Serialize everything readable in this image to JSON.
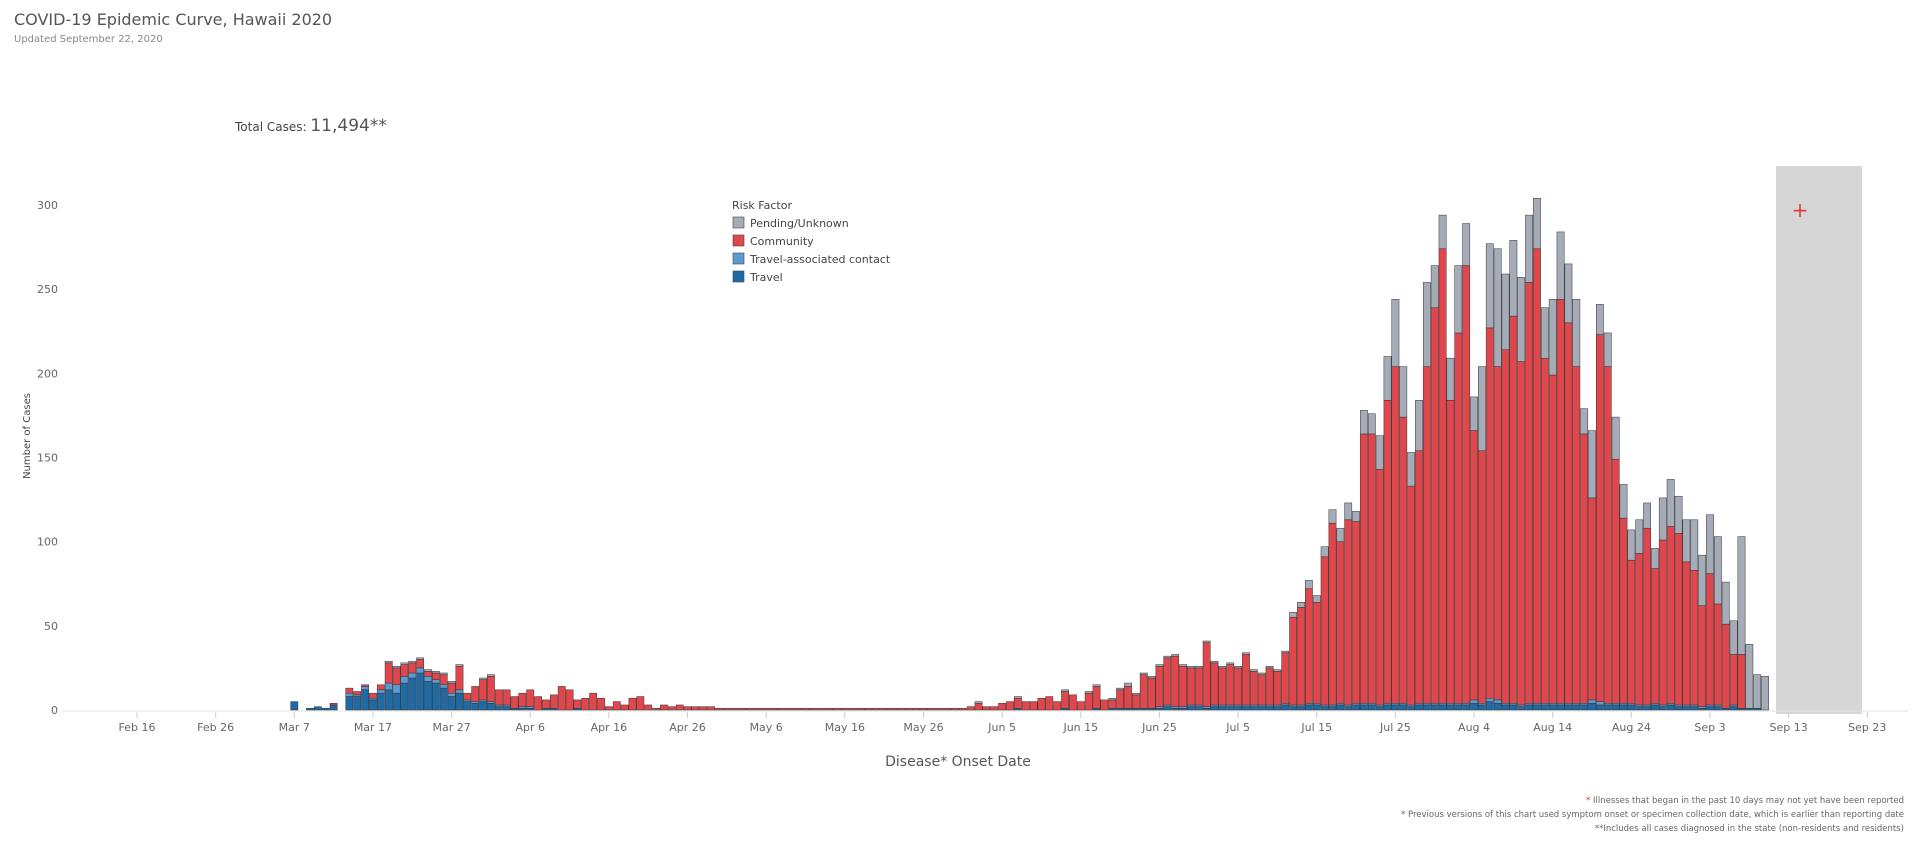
{
  "header": {
    "title": "COVID-19 Epidemic Curve, Hawaii 2020",
    "updated": "Updated September 22, 2020"
  },
  "total_cases": {
    "label": "Total Cases:",
    "value": "11,494**"
  },
  "footnotes": {
    "note1_star": "*",
    "note1_text": " Illnesses that began in the past 10 days may not yet have been reported",
    "note2": "* Previous versions of this chart used symptom onset or specimen collection date, which is earlier than reporting date",
    "note3": "**Includes all cases diagnosed in the state (non-residents and residents)"
  },
  "chart_data": {
    "type": "bar",
    "stacked": true,
    "xlabel": "Disease* Onset Date",
    "ylabel": "Number of Cases",
    "ylim": [
      0,
      320
    ],
    "y_ticks": [
      0,
      50,
      100,
      150,
      200,
      250,
      300
    ],
    "x_tick_labels": [
      "Feb 16",
      "Feb 26",
      "Mar 7",
      "Mar 17",
      "Mar 27",
      "Apr 6",
      "Apr 16",
      "Apr 26",
      "May 6",
      "May 16",
      "May 26",
      "Jun 5",
      "Jun 15",
      "Jun 25",
      "Jul 5",
      "Jul 15",
      "Jul 25",
      "Aug 4",
      "Aug 14",
      "Aug 24",
      "Sep 3",
      "Sep 13",
      "Sep 23"
    ],
    "legend": {
      "title": "Risk Factor",
      "placement": "top-center",
      "items": [
        "Pending/Unknown",
        "Community",
        "Travel-associated contact",
        "Travel"
      ]
    },
    "colors": {
      "Pending/Unknown": "#a5acb7",
      "Community": "#e0474c",
      "Travel-associated contact": "#5b9bd1",
      "Travel": "#1f6aa5",
      "shade": "#d6d6d6",
      "shade_marker": "#e03c3c"
    },
    "shaded_region": {
      "from": "Sep 12",
      "to": "Sep 22",
      "marker": "+",
      "note": "*"
    },
    "start_date": "Feb 16",
    "series_order": [
      "Travel",
      "Travel-associated contact",
      "Community",
      "Pending/Unknown"
    ],
    "series": [
      {
        "name": "Travel",
        "values": [
          0,
          0,
          0,
          0,
          0,
          0,
          0,
          0,
          0,
          0,
          0,
          0,
          0,
          0,
          0,
          0,
          0,
          0,
          0,
          0,
          5,
          0,
          1,
          2,
          1,
          3,
          0,
          8,
          8,
          12,
          6,
          10,
          12,
          10,
          16,
          19,
          22,
          17,
          16,
          13,
          8,
          10,
          5,
          4,
          5,
          4,
          2,
          2,
          1,
          1,
          1,
          0,
          1,
          1,
          0,
          0,
          1,
          0,
          0,
          0,
          0,
          0,
          0,
          0,
          0,
          0,
          0,
          0,
          0,
          0,
          0,
          0,
          0,
          0,
          0,
          0,
          0,
          0,
          0,
          0,
          0,
          0,
          0,
          0,
          0,
          0,
          0,
          0,
          0,
          0,
          0,
          0,
          0,
          0,
          0,
          0,
          0,
          0,
          0,
          0,
          0,
          0,
          0,
          0,
          0,
          0,
          0,
          0,
          0,
          0,
          0,
          0,
          1,
          0,
          0,
          0,
          0,
          0,
          1,
          0,
          0,
          0,
          1,
          0,
          1,
          1,
          1,
          1,
          1,
          1,
          1,
          2,
          1,
          1,
          2,
          2,
          1,
          2,
          2,
          2,
          2,
          2,
          2,
          2,
          2,
          2,
          3,
          2,
          2,
          3,
          3,
          2,
          2,
          3,
          2,
          3,
          3,
          3,
          2,
          3,
          3,
          3,
          2,
          3,
          3,
          3,
          3,
          3,
          3,
          3,
          4,
          3,
          5,
          4,
          3,
          3,
          2,
          3,
          3,
          3,
          3,
          3,
          3,
          3,
          3,
          4,
          3,
          3,
          3,
          3,
          3,
          2,
          2,
          3,
          2,
          3,
          2,
          2,
          2,
          1,
          2,
          2,
          1,
          2,
          1,
          1,
          1,
          0,
          0
        ]
      },
      {
        "name": "Travel-associated contact",
        "values": [
          0,
          0,
          0,
          0,
          0,
          0,
          0,
          0,
          0,
          0,
          0,
          0,
          0,
          0,
          0,
          0,
          0,
          0,
          0,
          0,
          0,
          0,
          0,
          0,
          0,
          0,
          0,
          2,
          1,
          2,
          1,
          2,
          4,
          5,
          4,
          3,
          3,
          3,
          2,
          2,
          2,
          2,
          1,
          1,
          1,
          1,
          1,
          1,
          0,
          1,
          1,
          0,
          0,
          0,
          0,
          0,
          0,
          0,
          0,
          0,
          0,
          0,
          0,
          0,
          0,
          0,
          0,
          0,
          0,
          0,
          0,
          0,
          0,
          0,
          0,
          0,
          0,
          0,
          0,
          0,
          0,
          0,
          0,
          0,
          0,
          0,
          0,
          0,
          0,
          0,
          0,
          0,
          0,
          0,
          0,
          0,
          0,
          0,
          0,
          0,
          0,
          0,
          0,
          0,
          0,
          0,
          0,
          0,
          0,
          0,
          0,
          0,
          0,
          0,
          0,
          0,
          0,
          0,
          0,
          0,
          0,
          0,
          0,
          0,
          0,
          0,
          0,
          0,
          0,
          0,
          1,
          1,
          1,
          1,
          1,
          1,
          1,
          1,
          1,
          1,
          1,
          1,
          1,
          1,
          1,
          1,
          1,
          1,
          1,
          1,
          1,
          1,
          1,
          1,
          1,
          1,
          1,
          1,
          1,
          1,
          1,
          1,
          1,
          1,
          1,
          1,
          1,
          1,
          1,
          1,
          2,
          1,
          2,
          2,
          1,
          1,
          1,
          1,
          1,
          1,
          1,
          1,
          1,
          1,
          1,
          2,
          2,
          1,
          1,
          1,
          1,
          1,
          1,
          1,
          1,
          1,
          1,
          1,
          1,
          1,
          1,
          1,
          0,
          1,
          0,
          0,
          0,
          0,
          0
        ]
      },
      {
        "name": "Community",
        "values": [
          0,
          0,
          0,
          0,
          0,
          0,
          0,
          0,
          0,
          0,
          0,
          0,
          0,
          0,
          0,
          0,
          0,
          0,
          0,
          0,
          0,
          0,
          0,
          0,
          0,
          1,
          0,
          3,
          2,
          1,
          3,
          3,
          12,
          10,
          7,
          6,
          5,
          3,
          4,
          6,
          6,
          14,
          4,
          9,
          12,
          15,
          9,
          9,
          7,
          8,
          10,
          8,
          5,
          8,
          14,
          12,
          5,
          7,
          10,
          7,
          2,
          5,
          3,
          7,
          8,
          3,
          1,
          3,
          2,
          3,
          2,
          2,
          2,
          2,
          1,
          1,
          1,
          1,
          1,
          1,
          1,
          1,
          1,
          1,
          1,
          1,
          1,
          1,
          1,
          1,
          1,
          1,
          1,
          1,
          1,
          1,
          1,
          1,
          1,
          1,
          1,
          1,
          1,
          1,
          1,
          1,
          2,
          4,
          2,
          2,
          4,
          5,
          6,
          5,
          5,
          7,
          8,
          5,
          10,
          9,
          5,
          10,
          13,
          6,
          5,
          11,
          13,
          8,
          20,
          18,
          24,
          28,
          30,
          24,
          22,
          22,
          38,
          25,
          22,
          24,
          22,
          30,
          20,
          18,
          22,
          20,
          30,
          52,
          58,
          68,
          60,
          88,
          108,
          96,
          110,
          108,
          160,
          160,
          140,
          180,
          200,
          170,
          130,
          150,
          200,
          235,
          270,
          180,
          220,
          260,
          160,
          150,
          220,
          198,
          210,
          230,
          204,
          250,
          270,
          205,
          195,
          240,
          226,
          200,
          160,
          120,
          218,
          200,
          145,
          110,
          85,
          90,
          105,
          80,
          98,
          105,
          102,
          85,
          80,
          60,
          78,
          60,
          50,
          30,
          32,
          0,
          0,
          0
        ]
      },
      {
        "name": "Pending/Unknown",
        "values": [
          0,
          0,
          0,
          0,
          0,
          0,
          0,
          0,
          0,
          0,
          0,
          0,
          0,
          0,
          0,
          0,
          0,
          0,
          0,
          0,
          0,
          0,
          0,
          0,
          0,
          0,
          0,
          0,
          0,
          0,
          0,
          0,
          1,
          1,
          1,
          1,
          1,
          1,
          1,
          1,
          1,
          1,
          0,
          0,
          1,
          1,
          0,
          0,
          0,
          0,
          0,
          0,
          0,
          0,
          0,
          0,
          0,
          0,
          0,
          0,
          0,
          0,
          0,
          0,
          0,
          0,
          0,
          0,
          0,
          0,
          0,
          0,
          0,
          0,
          0,
          0,
          0,
          0,
          0,
          0,
          0,
          0,
          0,
          0,
          0,
          0,
          0,
          0,
          0,
          0,
          0,
          0,
          0,
          0,
          0,
          0,
          0,
          0,
          0,
          0,
          0,
          0,
          0,
          0,
          0,
          0,
          0,
          1,
          0,
          0,
          0,
          0,
          1,
          0,
          0,
          0,
          0,
          0,
          1,
          0,
          0,
          1,
          1,
          0,
          1,
          1,
          2,
          1,
          1,
          1,
          1,
          1,
          1,
          1,
          1,
          1,
          1,
          1,
          1,
          1,
          1,
          1,
          1,
          1,
          1,
          1,
          1,
          3,
          3,
          5,
          4,
          6,
          8,
          8,
          10,
          6,
          14,
          12,
          20,
          26,
          40,
          30,
          20,
          30,
          50,
          25,
          20,
          25,
          40,
          25,
          20,
          50,
          50,
          70,
          45,
          45,
          50,
          40,
          30,
          30,
          45,
          40,
          35,
          40,
          15,
          40,
          18,
          20,
          25,
          20,
          18,
          20,
          15,
          12,
          25,
          28,
          22,
          25,
          30,
          30,
          35,
          40,
          25,
          20,
          70,
          38,
          20,
          20
        ]
      }
    ]
  }
}
